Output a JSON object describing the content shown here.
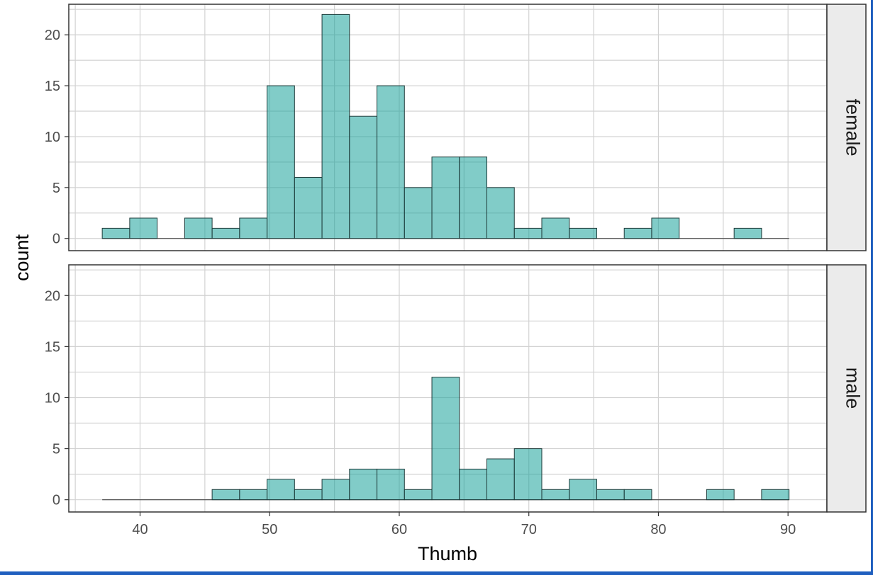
{
  "colors": {
    "bar_fill": "#1aa39a",
    "bar_stroke": "#1f3b3a",
    "frame_accent": "#1f5fbf"
  },
  "chart_data": {
    "type": "bar",
    "facet_by": "sex",
    "xlabel": "Thumb",
    "ylabel": "count",
    "xlim": [
      34.5,
      93
    ],
    "ylim": [
      -1.2,
      23
    ],
    "x_ticks": [
      40,
      50,
      60,
      70,
      80,
      90
    ],
    "y_ticks": [
      0,
      5,
      10,
      15,
      20
    ],
    "grid": true,
    "bin_width": 2.12,
    "first_bin_center": 38.14,
    "panels": [
      {
        "label": "female",
        "values": [
          1,
          2,
          0,
          2,
          1,
          2,
          15,
          6,
          22,
          12,
          15,
          5,
          8,
          8,
          5,
          1,
          2,
          1,
          0,
          1,
          2,
          0,
          0,
          1,
          0
        ]
      },
      {
        "label": "male",
        "values": [
          0,
          0,
          0,
          0,
          1,
          1,
          2,
          1,
          2,
          3,
          3,
          1,
          12,
          3,
          4,
          5,
          1,
          2,
          1,
          1,
          0,
          0,
          1,
          0,
          1
        ]
      }
    ]
  }
}
